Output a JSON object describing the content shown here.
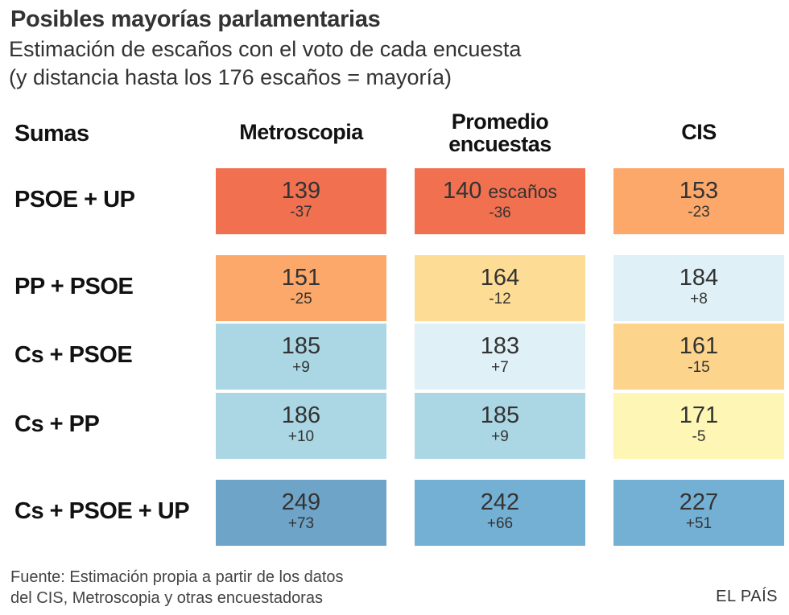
{
  "title": "Posibles mayorías parlamentarias",
  "subtitle_line1": "Estimación de escaños con el voto de cada encuesta",
  "subtitle_line2": "(y distancia hasta los 176 escaños = mayoría)",
  "row_header": "Sumas",
  "source_line1": "Fuente: Estimación propia a partir de los datos",
  "source_line2": "del CIS, Metroscopia y otras encuestadoras",
  "brand": "EL PAÍS",
  "chart_data": {
    "type": "table",
    "title": "Posibles mayorías parlamentarias",
    "majority_threshold": 176,
    "columns": [
      "Metroscopia",
      "Promedio encuestas",
      "CIS"
    ],
    "column_header_lines": [
      [
        "Metroscopia"
      ],
      [
        "Promedio",
        "encuestas"
      ],
      [
        "CIS"
      ]
    ],
    "unit_label": "escaños",
    "rows": [
      {
        "label": "PSOE + UP",
        "values": [
          139,
          140,
          153
        ],
        "diffs": [
          "-37",
          "-36",
          "-23"
        ]
      },
      {
        "label": "PP + PSOE",
        "values": [
          151,
          164,
          184
        ],
        "diffs": [
          "-25",
          "-12",
          "+8"
        ]
      },
      {
        "label": "Cs + PSOE",
        "values": [
          185,
          183,
          161
        ],
        "diffs": [
          "+9",
          "+7",
          "-15"
        ]
      },
      {
        "label": "Cs + PP",
        "values": [
          186,
          185,
          171
        ],
        "diffs": [
          "+10",
          "+9",
          "-5"
        ]
      },
      {
        "label": "Cs + PSOE + UP",
        "values": [
          249,
          242,
          227
        ],
        "diffs": [
          "+73",
          "+66",
          "+51"
        ]
      }
    ],
    "colors": [
      [
        "#f07050",
        "#f07050",
        "#fba86a"
      ],
      [
        "#fba86a",
        "#fddc95",
        "#dff0f6"
      ],
      [
        "#abd6e4",
        "#dff0f6",
        "#fcd48c"
      ],
      [
        "#abd6e4",
        "#abd6e4",
        "#fdf6b4"
      ],
      [
        "#6ea4c8",
        "#74b0d4",
        "#74b0d4"
      ]
    ]
  }
}
